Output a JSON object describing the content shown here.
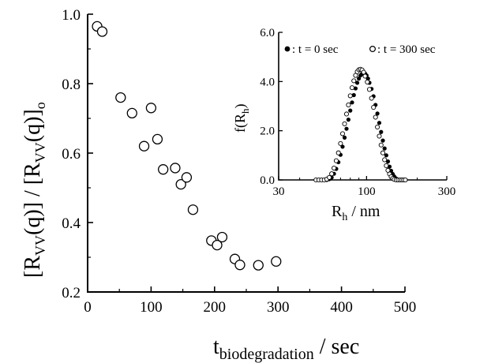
{
  "chart_data": [
    {
      "type": "scatter",
      "title": "",
      "xlabel": {
        "main": "t",
        "sub": "biodegradation",
        "unit": " / sec"
      },
      "ylabel": {
        "p1": "[R",
        "s1": "VV",
        "p2": "(q)] / [R",
        "s2": "VV",
        "p3": "(q)]",
        "s3": "o"
      },
      "xlim": [
        0,
        500
      ],
      "ylim": [
        0.2,
        1.0
      ],
      "xticks": [
        0,
        100,
        200,
        300,
        400,
        500
      ],
      "yticks": [
        0.2,
        0.4,
        0.6,
        0.8,
        1.0
      ],
      "xtick_labels": [
        "0",
        "100",
        "200",
        "300",
        "400",
        "500"
      ],
      "ytick_labels": [
        "0.2",
        "0.4",
        "0.6",
        "0.8",
        "1.0"
      ],
      "marker": "open-circle",
      "grid": false,
      "series": [
        {
          "points": [
            [
              15,
              0.965
            ],
            [
              23,
              0.95
            ],
            [
              52,
              0.76
            ],
            [
              70,
              0.715
            ],
            [
              89,
              0.62
            ],
            [
              100,
              0.73
            ],
            [
              110,
              0.64
            ],
            [
              119,
              0.553
            ],
            [
              138,
              0.557
            ],
            [
              147,
              0.51
            ],
            [
              156,
              0.53
            ],
            [
              166,
              0.437
            ],
            [
              195,
              0.348
            ],
            [
              204,
              0.335
            ],
            [
              212,
              0.358
            ],
            [
              232,
              0.295
            ],
            [
              240,
              0.278
            ],
            [
              269,
              0.277
            ],
            [
              297,
              0.288
            ]
          ]
        }
      ]
    },
    {
      "type": "scatter",
      "title": "",
      "xlabel": {
        "main": "R",
        "sub": "h",
        "unit": " / nm"
      },
      "ylabel": {
        "p1": "f(R",
        "s1": "h",
        "p2": ")"
      },
      "xscale": "log",
      "xlim": [
        30,
        300
      ],
      "ylim": [
        0.0,
        6.0
      ],
      "xticks": [
        30,
        100,
        300
      ],
      "yticks": [
        0.0,
        2.0,
        4.0,
        6.0
      ],
      "xtick_labels": [
        "30",
        "100",
        "300"
      ],
      "ytick_labels": [
        "0.0",
        "2.0",
        "4.0",
        "6.0"
      ],
      "legend_position": "top",
      "grid": false,
      "series": [
        {
          "name": ": t = 0 sec",
          "marker": "filled-circle",
          "points": [
            [
              52,
              0.0
            ],
            [
              54,
              0.0
            ],
            [
              56,
              0.0
            ],
            [
              58,
              0.0
            ],
            [
              60,
              0.03
            ],
            [
              62,
              0.1
            ],
            [
              64,
              0.25
            ],
            [
              66,
              0.45
            ],
            [
              68,
              0.72
            ],
            [
              70,
              1.02
            ],
            [
              72,
              1.35
            ],
            [
              74,
              1.72
            ],
            [
              76,
              2.08
            ],
            [
              78,
              2.45
            ],
            [
              80,
              2.82
            ],
            [
              82,
              3.15
            ],
            [
              84,
              3.45
            ],
            [
              86,
              3.72
            ],
            [
              88,
              3.95
            ],
            [
              90,
              4.12
            ],
            [
              92,
              4.25
            ],
            [
              94,
              4.32
            ],
            [
              96,
              4.35
            ],
            [
              98,
              4.32
            ],
            [
              100,
              4.25
            ],
            [
              102,
              4.12
            ],
            [
              104,
              3.95
            ],
            [
              107,
              3.7
            ],
            [
              110,
              3.4
            ],
            [
              113,
              3.05
            ],
            [
              116,
              2.7
            ],
            [
              119,
              2.32
            ],
            [
              122,
              1.95
            ],
            [
              125,
              1.6
            ],
            [
              128,
              1.28
            ],
            [
              131,
              1.0
            ],
            [
              134,
              0.75
            ],
            [
              137,
              0.54
            ],
            [
              140,
              0.37
            ],
            [
              143,
              0.24
            ],
            [
              146,
              0.14
            ],
            [
              149,
              0.07
            ],
            [
              152,
              0.03
            ],
            [
              155,
              0.0
            ],
            [
              159,
              0.0
            ],
            [
              163,
              0.0
            ],
            [
              167,
              0.0
            ],
            [
              171,
              0.0
            ]
          ]
        },
        {
          "name": ": t = 300 sec",
          "marker": "open-circle",
          "points": [
            [
              50,
              0.0
            ],
            [
              52,
              0.0
            ],
            [
              54,
              0.0
            ],
            [
              56,
              0.0
            ],
            [
              58,
              0.03
            ],
            [
              60,
              0.1
            ],
            [
              62,
              0.25
            ],
            [
              64,
              0.48
            ],
            [
              66,
              0.78
            ],
            [
              68,
              1.1
            ],
            [
              70,
              1.48
            ],
            [
              72,
              1.88
            ],
            [
              74,
              2.28
            ],
            [
              76,
              2.68
            ],
            [
              78,
              3.05
            ],
            [
              80,
              3.42
            ],
            [
              82,
              3.75
            ],
            [
              84,
              4.03
            ],
            [
              86,
              4.25
            ],
            [
              88,
              4.4
            ],
            [
              90,
              4.48
            ],
            [
              92,
              4.5
            ],
            [
              94,
              4.47
            ],
            [
              96,
              4.38
            ],
            [
              98,
              4.22
            ],
            [
              101,
              3.98
            ],
            [
              104,
              3.68
            ],
            [
              107,
              3.32
            ],
            [
              110,
              2.95
            ],
            [
              113,
              2.55
            ],
            [
              116,
              2.15
            ],
            [
              119,
              1.78
            ],
            [
              122,
              1.42
            ],
            [
              125,
              1.1
            ],
            [
              128,
              0.82
            ],
            [
              131,
              0.58
            ],
            [
              134,
              0.39
            ],
            [
              137,
              0.24
            ],
            [
              140,
              0.13
            ],
            [
              143,
              0.06
            ],
            [
              146,
              0.02
            ],
            [
              150,
              0.0
            ],
            [
              154,
              0.0
            ],
            [
              158,
              0.0
            ],
            [
              162,
              0.0
            ],
            [
              166,
              0.0
            ],
            [
              170,
              0.0
            ]
          ]
        }
      ]
    }
  ]
}
